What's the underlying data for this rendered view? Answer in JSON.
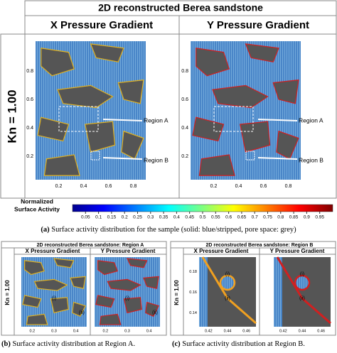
{
  "panel_a": {
    "title": "2D reconstructed Berea sandstone",
    "columns": [
      "X Pressure Gradient",
      "Y Pressure Gradient"
    ],
    "row_label": "Kn = 1.00",
    "yticks": [
      "0.8",
      "0.6",
      "0.4",
      "0.2"
    ],
    "xticks": [
      "0.2",
      "0.4",
      "0.6",
      "0.8"
    ],
    "annotations": [
      "Region A",
      "Region B"
    ]
  },
  "colorbar": {
    "label": [
      "Normalized",
      "Surface Activity"
    ],
    "ticks": [
      "0.05",
      "0.1",
      "0.15",
      "0.2",
      "0.25",
      "0.3",
      "0.35",
      "0.4",
      "0.45",
      "0.5",
      "0.55",
      "0.6",
      "0.65",
      "0.7",
      "0.75",
      "0.8",
      "0.85",
      "0.9",
      "0.95"
    ]
  },
  "caption_a": {
    "tag": "(a)",
    "text": "Surface activity distribution for the sample (solid: blue/stripped, pore space: grey)"
  },
  "panel_b": {
    "title": "2D reconstructed Berea sandstone: Region A",
    "columns": [
      "X Pressure Gradient",
      "Y Pressure Gradient"
    ],
    "row_label": "Kn = 1.00",
    "xticks": [
      "0.2",
      "0.3",
      "0.4"
    ],
    "annotations": [
      "(i)",
      "(ii)"
    ]
  },
  "panel_c": {
    "title": "2D reconstructed Berea sandstone: Region B",
    "columns": [
      "X Pressure Gradient",
      "Y Pressure Gradient"
    ],
    "row_label": "Kn = 1.00",
    "yticks": [
      "0.18",
      "0.16",
      "0.14"
    ],
    "xticks": [
      "0.42",
      "0.44",
      "0.46"
    ],
    "annotations": [
      "(i)",
      "(ii)"
    ]
  },
  "caption_b": {
    "tag": "(b)",
    "text": "Surface activity distribution at Region A."
  },
  "caption_c": {
    "tag": "(c)",
    "text": "Surface activity distribution at Region B."
  }
}
